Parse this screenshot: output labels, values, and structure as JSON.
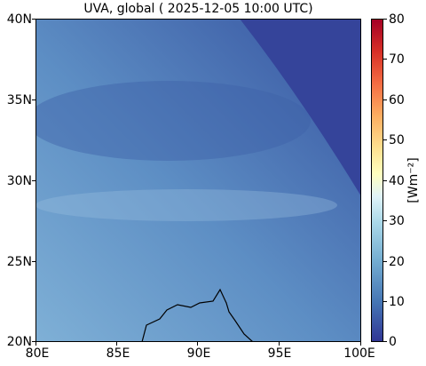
{
  "title": "UVA, global ( 2025-12-05 10:00 UTC)",
  "map": {
    "lat_ticks": [
      "20N",
      "25N",
      "30N",
      "35N",
      "40N"
    ],
    "lon_ticks": [
      "80E",
      "85E",
      "90E",
      "95E",
      "100E"
    ],
    "lat_range": [
      20,
      40
    ],
    "lon_range": [
      80,
      100
    ]
  },
  "colorbar": {
    "ticks": [
      "0",
      "10",
      "20",
      "30",
      "40",
      "50",
      "60",
      "70",
      "80"
    ],
    "range": [
      0,
      80
    ],
    "unit_label": "[Wm⁻²]",
    "colormap": "RdYlBu_r"
  },
  "colors": {
    "low": "#313695",
    "mid_low": "#4a74b4",
    "field_light": "#7fb0d6",
    "high": "#a50026"
  }
}
